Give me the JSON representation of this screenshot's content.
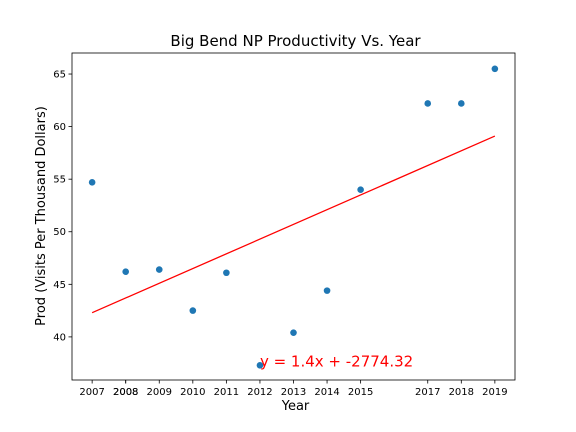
{
  "chart_data": {
    "type": "scatter",
    "title": "Big Bend NP Productivity Vs. Year",
    "xlabel": "Year",
    "ylabel": "Prod (Visits Per Thousand Dollars)",
    "x": [
      2007,
      2008,
      2009,
      2010,
      2011,
      2012,
      2013,
      2014,
      2015,
      2017,
      2018,
      2019
    ],
    "y": [
      54.7,
      46.2,
      46.4,
      42.5,
      46.1,
      37.3,
      40.4,
      44.4,
      54.0,
      62.2,
      62.2,
      65.5
    ],
    "xticks": [
      "2007",
      "2008",
      "2008",
      "2009",
      "2010",
      "2011",
      "2012",
      "2013",
      "2014",
      "2015",
      "2017",
      "2018",
      "2019"
    ],
    "xtick_values": [
      2007,
      2008,
      2008,
      2009,
      2010,
      2011,
      2012,
      2013,
      2014,
      2015,
      2017,
      2018,
      2019
    ],
    "yticks": [
      40,
      45,
      50,
      55,
      60,
      65
    ],
    "xlim": [
      2006.4,
      2019.6
    ],
    "ylim": [
      35.9,
      67.0
    ],
    "regression": {
      "slope": 1.4,
      "intercept": -2774.32,
      "x_start": 2007,
      "x_end": 2019,
      "equation": "y = 1.4x + -2774.32",
      "equation_x": 2012,
      "equation_y": 37.2
    },
    "colors": {
      "points": "#1f77b4",
      "line": "#ff0000",
      "equation": "#ff0000"
    },
    "grid": false
  }
}
